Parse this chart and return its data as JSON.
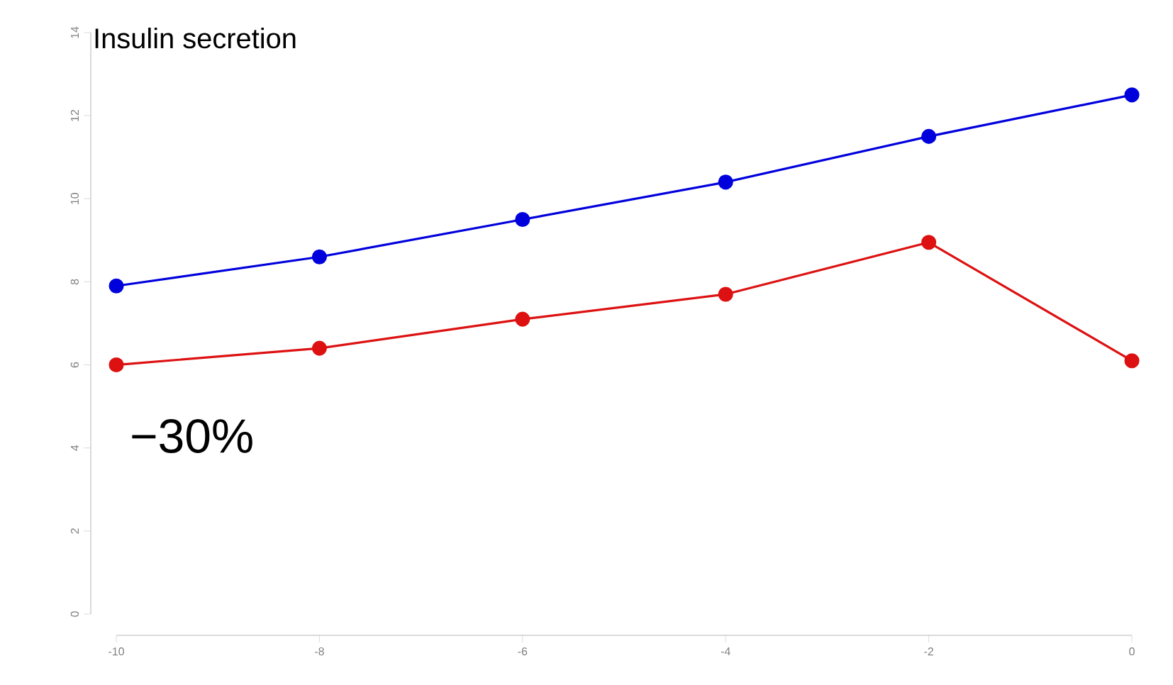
{
  "chart_data": {
    "type": "line",
    "title": "Insulin secretion",
    "x": [
      -10,
      -8,
      -6,
      -4,
      -2,
      0
    ],
    "series": [
      {
        "color": "#0000dd",
        "values": [
          7.9,
          8.6,
          9.5,
          10.4,
          11.5,
          12.5
        ]
      },
      {
        "color": "#dd1111",
        "values": [
          6.0,
          6.4,
          7.1,
          7.7,
          8.95,
          6.1
        ]
      }
    ],
    "xlim": [
      -10,
      0
    ],
    "ylim": [
      0,
      14
    ],
    "xticks": [
      -10,
      -8,
      -6,
      -4,
      -2,
      0
    ],
    "yticks": [
      0,
      2,
      4,
      6,
      8,
      10,
      12,
      14
    ],
    "marker": "circle",
    "line_style": "solid",
    "grid": false,
    "annotations": [
      "−30%"
    ]
  }
}
